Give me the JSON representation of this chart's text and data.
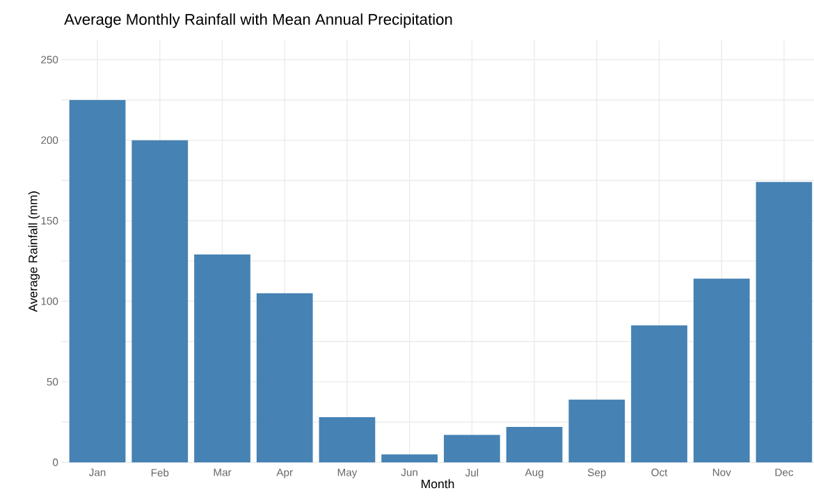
{
  "chart_data": {
    "type": "bar",
    "title": "Average Monthly Rainfall with Mean Annual Precipitation",
    "xlabel": "Month",
    "ylabel": "Average Rainfall (mm)",
    "categories": [
      "Jan",
      "Feb",
      "Mar",
      "Apr",
      "May",
      "Jun",
      "Jul",
      "Aug",
      "Sep",
      "Oct",
      "Nov",
      "Dec"
    ],
    "values": [
      225,
      200,
      129,
      105,
      28,
      5,
      17,
      22,
      39,
      85,
      114,
      174
    ],
    "color": "#4682b4",
    "ylim": [
      0,
      262
    ],
    "yticks": [
      0,
      {
        "value": 25,
        "label": null
      },
      50,
      {
        "value": 75,
        "label": null
      },
      100,
      {
        "value": 125,
        "label": null
      },
      150,
      {
        "value": 175,
        "label": null
      },
      200,
      {
        "value": 225,
        "label": null
      },
      250
    ],
    "grid": true
  }
}
